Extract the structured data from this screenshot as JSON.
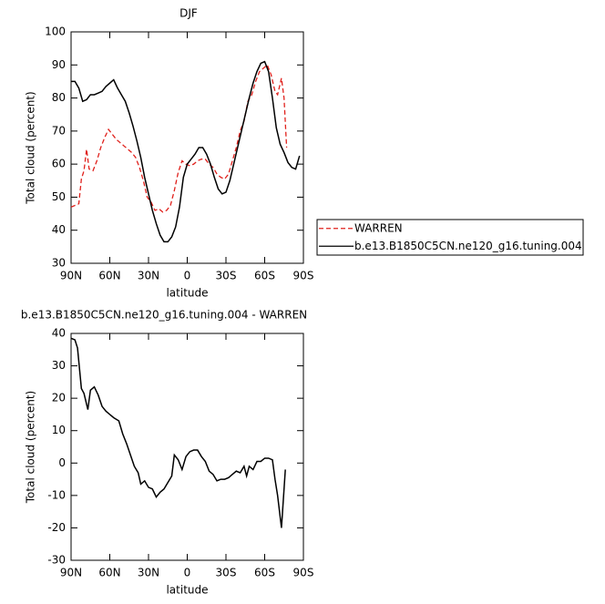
{
  "chart_data": [
    {
      "type": "line",
      "title": "DJF",
      "x_label": "latitude",
      "y_label": "Total cloud (percent)",
      "xlim": [
        90,
        -90
      ],
      "xticks": [
        {
          "value": 90,
          "label": "90N"
        },
        {
          "value": 60,
          "label": "60N"
        },
        {
          "value": 30,
          "label": "30N"
        },
        0,
        {
          "value": -30,
          "label": "30S"
        },
        {
          "value": -60,
          "label": "60S"
        },
        {
          "value": -90,
          "label": "90S"
        }
      ],
      "ylim": [
        30,
        100
      ],
      "yticks": [
        30,
        40,
        50,
        60,
        70,
        80,
        90,
        100
      ],
      "legend": "right",
      "series": [
        {
          "name": "WARREN",
          "color": "#e0201b",
          "dashed": true,
          "x": [
            90,
            87,
            84,
            82,
            80,
            78,
            76,
            73,
            70,
            67,
            64,
            61,
            58,
            55,
            52,
            49,
            46,
            43,
            40,
            37,
            34,
            31,
            28,
            25,
            22,
            19,
            16,
            13,
            10,
            7,
            4,
            1,
            -2,
            -5,
            -8,
            -11,
            -14,
            -17,
            -20,
            -23,
            -26,
            -29,
            -32,
            -35,
            -38,
            -41,
            -44,
            -47,
            -50,
            -53,
            -56,
            -59,
            -62,
            -65,
            -68,
            -70,
            -73,
            -75,
            -77
          ],
          "values": [
            47,
            47.5,
            48,
            55.5,
            58,
            64.5,
            58.5,
            58,
            61,
            65,
            68,
            70.5,
            69,
            67.5,
            66.5,
            65.5,
            64.5,
            63.5,
            62,
            59,
            55,
            50,
            48.5,
            46,
            46.5,
            45.5,
            46,
            47.5,
            52,
            57.5,
            61,
            60,
            59.5,
            60,
            61,
            61.5,
            61.5,
            60,
            59,
            57,
            56,
            55.5,
            57,
            61,
            65,
            70,
            73,
            79,
            81,
            85,
            88,
            89,
            90,
            87,
            82,
            81,
            86,
            80,
            65
          ]
        },
        {
          "name": "b.e13.B1850C5CN.ne120_g16.tuning.004",
          "color": "#000000",
          "dashed": false,
          "x": [
            90,
            87,
            84,
            81,
            78,
            75,
            72,
            69,
            66,
            63,
            60,
            57,
            54,
            51,
            48,
            45,
            42,
            39,
            36,
            33,
            30,
            27,
            24,
            21,
            18,
            15,
            12,
            9,
            6,
            3,
            0,
            -3,
            -6,
            -9,
            -12,
            -15,
            -18,
            -21,
            -24,
            -27,
            -30,
            -33,
            -36,
            -39,
            -42,
            -45,
            -48,
            -51,
            -54,
            -57,
            -60,
            -63,
            -66,
            -69,
            -72,
            -75,
            -78,
            -81,
            -84,
            -87
          ],
          "values": [
            85,
            85,
            83,
            79,
            79.5,
            81,
            81,
            81.5,
            82,
            83.5,
            84.5,
            85.5,
            83,
            81,
            79,
            75.5,
            71.5,
            67,
            62,
            56,
            51,
            46,
            42,
            38.5,
            36.5,
            36.5,
            38,
            41,
            47,
            56,
            60,
            61.5,
            63,
            65,
            65,
            63,
            60,
            56,
            52.5,
            51,
            51.5,
            55,
            60,
            65,
            70,
            75,
            80,
            84.5,
            88,
            90.5,
            91,
            88,
            80,
            71,
            66,
            63.5,
            60.5,
            59,
            58.5,
            62.5
          ]
        }
      ]
    },
    {
      "type": "line",
      "title": "b.e13.B1850C5CN.ne120_g16.tuning.004 - WARREN",
      "x_label": "latitude",
      "y_label": "Total cloud (percent)",
      "xlim": [
        90,
        -90
      ],
      "xticks": [
        {
          "value": 90,
          "label": "90N"
        },
        {
          "value": 60,
          "label": "60N"
        },
        {
          "value": 30,
          "label": "30N"
        },
        0,
        {
          "value": -30,
          "label": "30S"
        },
        {
          "value": -60,
          "label": "60S"
        },
        {
          "value": -90,
          "label": "90S"
        }
      ],
      "ylim": [
        -30,
        40
      ],
      "yticks": [
        -30,
        -20,
        -10,
        0,
        10,
        20,
        30,
        40
      ],
      "series": [
        {
          "color": "#000000",
          "dashed": false,
          "x": [
            90,
            87,
            85,
            82,
            80,
            77,
            75,
            72,
            69,
            66,
            63,
            60,
            57,
            53,
            50,
            47,
            44,
            41,
            38,
            36,
            33,
            30,
            27,
            24,
            21,
            18,
            15,
            12,
            10,
            7,
            4,
            1,
            -2,
            -5,
            -8,
            -11,
            -14,
            -17,
            -20,
            -23,
            -26,
            -29,
            -32,
            -35,
            -38,
            -41,
            -44,
            -46,
            -48,
            -51,
            -54,
            -57,
            -60,
            -63,
            -66,
            -68,
            -70,
            -73,
            -76
          ],
          "values": [
            38.5,
            38,
            35.5,
            23,
            21.5,
            16.5,
            22.5,
            23.5,
            21,
            17.5,
            16,
            15,
            14,
            13,
            9,
            6,
            2.5,
            -1,
            -3,
            -6.5,
            -5.5,
            -7.5,
            -8,
            -10.5,
            -9,
            -8,
            -6,
            -4,
            2.5,
            1,
            -2,
            2,
            3.5,
            4,
            4,
            2,
            0.5,
            -2.5,
            -3.5,
            -5.5,
            -5,
            -5,
            -4.5,
            -3.5,
            -2.5,
            -3,
            -1,
            -4,
            -1,
            -2,
            0.5,
            0.5,
            1.5,
            1.5,
            1,
            -5,
            -10,
            -20,
            -2
          ]
        }
      ]
    }
  ]
}
